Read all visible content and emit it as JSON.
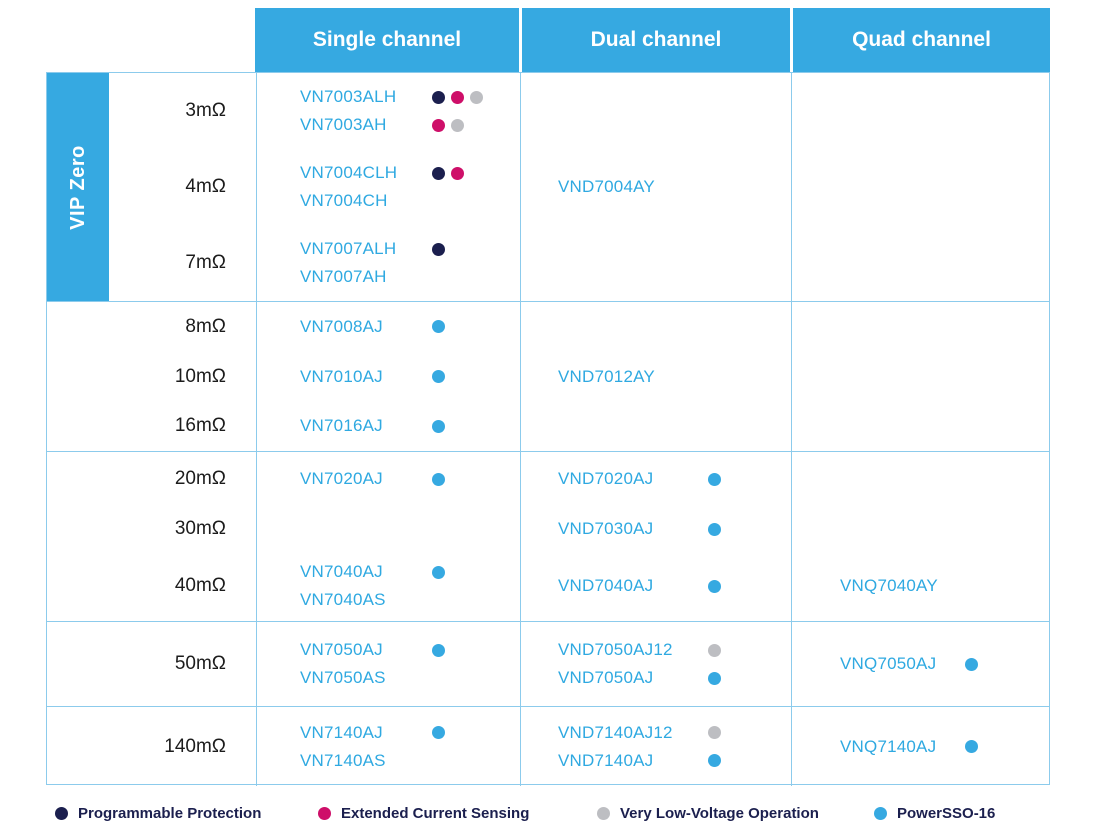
{
  "colors": {
    "navy": "#1B1F4E",
    "magenta": "#CE0F69",
    "gray": "#BDBEC2",
    "blue": "#36A9E1"
  },
  "header": {
    "single": "Single channel",
    "dual": "Dual channel",
    "quad": "Quad channel"
  },
  "side_label": "VIP Zero",
  "sections": [
    {
      "rows": [
        {
          "label": "3mΩ",
          "single": [
            {
              "name": "VN7003ALH",
              "dots": [
                "navy",
                "magenta",
                "gray"
              ]
            },
            {
              "name": "VN7003AH",
              "dots": [
                "magenta",
                "gray"
              ]
            }
          ]
        },
        {
          "label": "4mΩ",
          "single": [
            {
              "name": "VN7004CLH",
              "dots": [
                "navy",
                "magenta"
              ]
            },
            {
              "name": "VN7004CH",
              "dots": []
            }
          ]
        },
        {
          "label": "7mΩ",
          "single": [
            {
              "name": "VN7007ALH",
              "dots": [
                "navy"
              ]
            },
            {
              "name": "VN7007AH",
              "dots": []
            }
          ]
        }
      ],
      "dual_merged": {
        "name": "VND7004AY",
        "dots": []
      }
    },
    {
      "rows": [
        {
          "label": "8mΩ",
          "single": [
            {
              "name": "VN7008AJ",
              "dots": [
                "blue"
              ]
            }
          ]
        },
        {
          "label": "10mΩ",
          "single": [
            {
              "name": "VN7010AJ",
              "dots": [
                "blue"
              ]
            }
          ]
        },
        {
          "label": "16mΩ",
          "single": [
            {
              "name": "VN7016AJ",
              "dots": [
                "blue"
              ]
            }
          ]
        }
      ],
      "dual_merged": {
        "name": "VND7012AY",
        "dots": []
      }
    },
    {
      "rows": [
        {
          "label": "20mΩ",
          "single": [
            {
              "name": "VN7020AJ",
              "dots": [
                "blue"
              ]
            }
          ],
          "dual": [
            {
              "name": "VND7020AJ",
              "dots": [
                "blue"
              ]
            }
          ]
        },
        {
          "label": "30mΩ",
          "single": [],
          "dual": [
            {
              "name": "VND7030AJ",
              "dots": [
                "blue"
              ]
            }
          ]
        },
        {
          "label": "40mΩ",
          "single": [
            {
              "name": "VN7040AJ",
              "dots": [
                "blue"
              ]
            },
            {
              "name": "VN7040AS",
              "dots": []
            }
          ],
          "dual": [
            {
              "name": "VND7040AJ",
              "dots": [
                "blue"
              ]
            }
          ],
          "quad": [
            {
              "name": "VNQ7040AY",
              "dots": []
            }
          ]
        }
      ]
    },
    {
      "rows": [
        {
          "label": "50mΩ",
          "single": [
            {
              "name": "VN7050AJ",
              "dots": [
                "blue"
              ]
            },
            {
              "name": "VN7050AS",
              "dots": []
            }
          ],
          "dual": [
            {
              "name": "VND7050AJ12",
              "dots": [
                "gray"
              ]
            },
            {
              "name": "VND7050AJ",
              "dots": [
                "blue"
              ]
            }
          ],
          "quad": [
            {
              "name": "VNQ7050AJ",
              "dots": [
                "blue"
              ]
            }
          ]
        }
      ]
    },
    {
      "rows": [
        {
          "label": "140mΩ",
          "single": [
            {
              "name": "VN7140AJ",
              "dots": [
                "blue"
              ]
            },
            {
              "name": "VN7140AS",
              "dots": []
            }
          ],
          "dual": [
            {
              "name": "VND7140AJ12",
              "dots": [
                "gray"
              ]
            },
            {
              "name": "VND7140AJ",
              "dots": [
                "blue"
              ]
            }
          ],
          "quad": [
            {
              "name": "VNQ7140AJ",
              "dots": [
                "blue"
              ]
            }
          ]
        }
      ]
    }
  ],
  "legend": [
    {
      "color": "navy",
      "label": "Programmable Protection"
    },
    {
      "color": "magenta",
      "label": "Extended Current Sensing"
    },
    {
      "color": "gray",
      "label": "Very Low-Voltage Operation"
    },
    {
      "color": "blue",
      "label": "PowerSSO-16"
    }
  ]
}
